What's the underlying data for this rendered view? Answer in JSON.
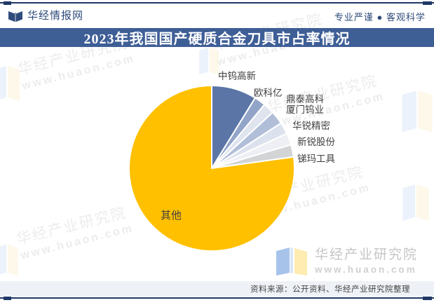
{
  "header": {
    "brand": "华经情报网",
    "tagline": "专业严谨 ● 客观科学"
  },
  "title": "2023年我国国产硬质合金刀具市占率情况",
  "chart_data": {
    "type": "pie",
    "title": "2023年我国国产硬质合金刀具市占率情况",
    "labels": [
      "中钨高新",
      "欧科亿",
      "鼎泰高科",
      "厦门钨业",
      "华锐精密",
      "新锐股份",
      "锑玛工具",
      "其他"
    ],
    "values": [
      8.8,
      2.2,
      2.2,
      2.6,
      2.3,
      2.3,
      2.4,
      77.2
    ],
    "unit": "%",
    "colors": [
      "#5a75a6",
      "#92a5c8",
      "#dfe4ee",
      "#b1bed8",
      "#dce2ed",
      "#edeff4",
      "#d2d4d6",
      "#ffc000"
    ],
    "start_angle_deg": 0,
    "direction": "clockwise",
    "legend": "none",
    "data_labels": "category-names-only"
  },
  "watermark": {
    "line1": "华经产业研究院",
    "line2": "www.huaon.com"
  },
  "footer_logo": {
    "name": "华经产业研究院",
    "url": "www.huaon.com"
  },
  "source_bar": {
    "text": "资料来源：公开资料、华经产业研究院整理"
  },
  "colors": {
    "accent_navy": "#203864",
    "title_bar_bg": "#3e5e96",
    "header_text": "#2e4b7b",
    "other_slice_gold": "#ffc000",
    "source_bar_bg": "#eef1f6"
  }
}
